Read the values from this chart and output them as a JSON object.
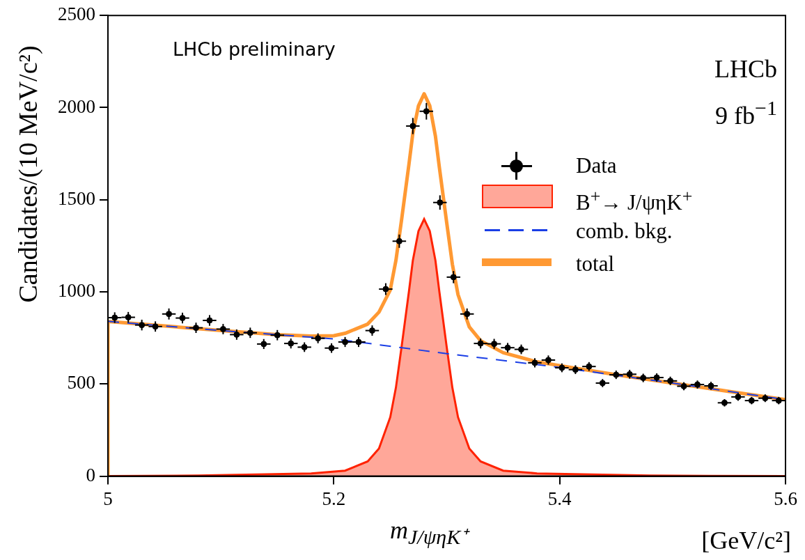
{
  "chart_data": {
    "type": "scatter",
    "xlabel": "m$_{J/ψηK⁺}$",
    "ylabel": "Candidates/(10 MeV/c²)",
    "annotations": [
      "LHCb preliminary",
      "LHCb",
      "9 fb$^{−1}$",
      "[GeV/c²]"
    ],
    "xlim": [
      5,
      5.6
    ],
    "xticks": [
      5,
      5.2,
      5.4,
      5.6
    ],
    "ylim": [
      0,
      2500
    ],
    "yticks": [
      0,
      500,
      1000,
      1500,
      2000,
      2500
    ],
    "grid": false,
    "legend": "right",
    "marker": "circle",
    "series": [
      {
        "name": "Data",
        "color": "#000000",
        "x": [
          5.006,
          5.018,
          5.03,
          5.042,
          5.054,
          5.066,
          5.078,
          5.09,
          5.102,
          5.114,
          5.126,
          5.138,
          5.15,
          5.162,
          5.174,
          5.186,
          5.198,
          5.21,
          5.222,
          5.234,
          5.246,
          5.258,
          5.27,
          5.282,
          5.294,
          5.306,
          5.318,
          5.33,
          5.342,
          5.354,
          5.366,
          5.378,
          5.39,
          5.402,
          5.414,
          5.426,
          5.438,
          5.45,
          5.462,
          5.474,
          5.486,
          5.498,
          5.51,
          5.522,
          5.534,
          5.546,
          5.558,
          5.57,
          5.582,
          5.594
        ],
        "values": [
          860,
          862,
          820,
          812,
          880,
          858,
          805,
          845,
          798,
          768,
          778,
          717,
          765,
          720,
          700,
          748,
          695,
          728,
          728,
          790,
          1015,
          1275,
          1900,
          1980,
          1485,
          1080,
          880,
          720,
          718,
          697,
          688,
          615,
          630,
          588,
          578,
          595,
          505,
          550,
          553,
          533,
          535,
          517,
          488,
          497,
          490,
          398,
          430,
          410,
          423,
          410
        ],
        "errors": [
          29,
          29,
          29,
          28,
          30,
          29,
          28,
          29,
          28,
          28,
          28,
          27,
          28,
          27,
          26,
          27,
          26,
          27,
          27,
          28,
          32,
          36,
          44,
          45,
          39,
          33,
          30,
          27,
          27,
          26,
          26,
          25,
          25,
          24,
          24,
          24,
          22,
          23,
          24,
          23,
          23,
          23,
          22,
          22,
          22,
          20,
          21,
          20,
          21,
          20
        ],
        "xerrors": [
          0.006,
          0.006,
          0.006,
          0.006,
          0.006,
          0.006,
          0.006,
          0.006,
          0.006,
          0.006,
          0.006,
          0.006,
          0.006,
          0.006,
          0.006,
          0.006,
          0.006,
          0.006,
          0.006,
          0.006,
          0.006,
          0.006,
          0.006,
          0.006,
          0.006,
          0.006,
          0.006,
          0.006,
          0.006,
          0.006,
          0.006,
          0.006,
          0.006,
          0.006,
          0.006,
          0.006,
          0.006,
          0.006,
          0.006,
          0.006,
          0.006,
          0.006,
          0.006,
          0.006,
          0.006,
          0.006,
          0.006,
          0.006,
          0.006,
          0.006
        ]
      },
      {
        "name": "B$^{+}$→ J/ψηK$^{+}$",
        "type": "area",
        "color": "#ff2200",
        "marker": "none",
        "x": [
          5.0,
          5.08,
          5.18,
          5.21,
          5.23,
          5.24,
          5.25,
          5.255,
          5.26,
          5.2665,
          5.27,
          5.275,
          5.28,
          5.285,
          5.29,
          5.2935,
          5.3,
          5.305,
          5.31,
          5.32,
          5.33,
          5.35,
          5.38,
          5.48,
          5.6
        ],
        "values": [
          0,
          3,
          15,
          30,
          80,
          150,
          320,
          480,
          700,
          1000,
          1170,
          1330,
          1395,
          1330,
          1170,
          1000,
          700,
          480,
          320,
          150,
          80,
          30,
          15,
          3,
          0
        ]
      },
      {
        "name": "comb. bkg.",
        "type": "line",
        "line_style": "dashed",
        "color": "#1a3ee6",
        "marker": "none",
        "x": [
          5.0,
          5.1,
          5.2,
          5.3,
          5.4,
          5.5,
          5.6
        ],
        "values": [
          840,
          790,
          745,
          665,
          590,
          505,
          415
        ]
      },
      {
        "name": "total",
        "type": "line",
        "line_style": "solid",
        "color": "#ff9933",
        "marker": "none",
        "x": [
          5.0,
          5.0,
          5.1,
          5.15,
          5.18,
          5.2,
          5.21,
          5.23,
          5.24,
          5.25,
          5.255,
          5.26,
          5.2665,
          5.27,
          5.275,
          5.28,
          5.285,
          5.29,
          5.2935,
          5.3,
          5.305,
          5.31,
          5.32,
          5.33,
          5.35,
          5.38,
          5.4,
          5.45,
          5.5,
          5.55,
          5.6
        ],
        "values": [
          0,
          840,
          790,
          768,
          760,
          762,
          775,
          825,
          890,
          1010,
          1170,
          1390,
          1690,
          1860,
          2010,
          2075,
          2010,
          1845,
          1675,
          1375,
          1150,
          985,
          810,
          735,
          670,
          620,
          600,
          550,
          505,
          460,
          415
        ]
      }
    ]
  }
}
